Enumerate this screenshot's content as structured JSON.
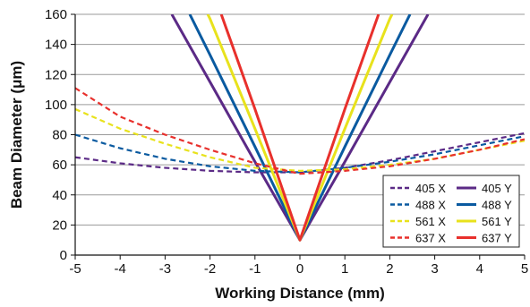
{
  "chart_data": {
    "type": "line",
    "xlabel": "Working Distance (mm)",
    "ylabel": "Beam Diameter (μm)",
    "xlim": [
      -5,
      5
    ],
    "ylim": [
      0,
      160
    ],
    "xticks": [
      -5,
      -4,
      -3,
      -2,
      -1,
      0,
      1,
      2,
      3,
      4,
      5
    ],
    "yticks": [
      0,
      20,
      40,
      60,
      80,
      100,
      120,
      140,
      160
    ],
    "grid": "horizontal",
    "legend_position": "bottom-right",
    "series": [
      {
        "name": "405 X",
        "color": "#5b2a86",
        "style": "dashed",
        "x": [
          -5,
          -4,
          -3,
          -2,
          -1,
          0,
          1,
          2,
          3,
          4,
          5
        ],
        "y": [
          65,
          61,
          58,
          56,
          55,
          55,
          58,
          63,
          69,
          75,
          81
        ]
      },
      {
        "name": "405 Y",
        "color": "#5b2a86",
        "style": "solid",
        "x": [
          -2.85,
          -2,
          -1,
          0,
          1,
          2,
          2.85
        ],
        "y": [
          160,
          115,
          62,
          10,
          62,
          115,
          160
        ]
      },
      {
        "name": "488 X",
        "color": "#0a5aa0",
        "style": "dashed",
        "x": [
          -5,
          -4,
          -3,
          -2,
          -1,
          0,
          1,
          2,
          3,
          4,
          5
        ],
        "y": [
          80,
          71,
          64,
          59,
          56,
          55,
          58,
          62,
          67,
          73,
          79
        ]
      },
      {
        "name": "488 Y",
        "color": "#0a5aa0",
        "style": "solid",
        "x": [
          -2.45,
          -2,
          -1,
          0,
          1,
          2,
          2.45
        ],
        "y": [
          160,
          133,
          72,
          10,
          72,
          133,
          160
        ]
      },
      {
        "name": "561 X",
        "color": "#e8e21c",
        "style": "dashed",
        "x": [
          -5,
          -4,
          -3,
          -2,
          -1,
          0,
          1,
          2,
          3,
          4,
          5
        ],
        "y": [
          97,
          84,
          74,
          65,
          58,
          56,
          57,
          60,
          64,
          70,
          76
        ]
      },
      {
        "name": "561 Y",
        "color": "#e8e21c",
        "style": "solid",
        "x": [
          -2.05,
          -2,
          -1,
          0,
          1,
          2,
          2.05
        ],
        "y": [
          160,
          157,
          84,
          10,
          84,
          157,
          160
        ]
      },
      {
        "name": "637 X",
        "color": "#e8302c",
        "style": "dashed",
        "x": [
          -5,
          -4,
          -3,
          -2,
          -1,
          0,
          1,
          2,
          3,
          4,
          5
        ],
        "y": [
          111,
          92,
          80,
          70,
          61,
          54,
          56,
          59,
          64,
          70,
          77
        ]
      },
      {
        "name": "637 Y",
        "color": "#e8302c",
        "style": "solid",
        "x": [
          -1.75,
          -1,
          0,
          1,
          1.75
        ],
        "y": [
          160,
          97,
          10,
          97,
          160
        ]
      }
    ]
  }
}
